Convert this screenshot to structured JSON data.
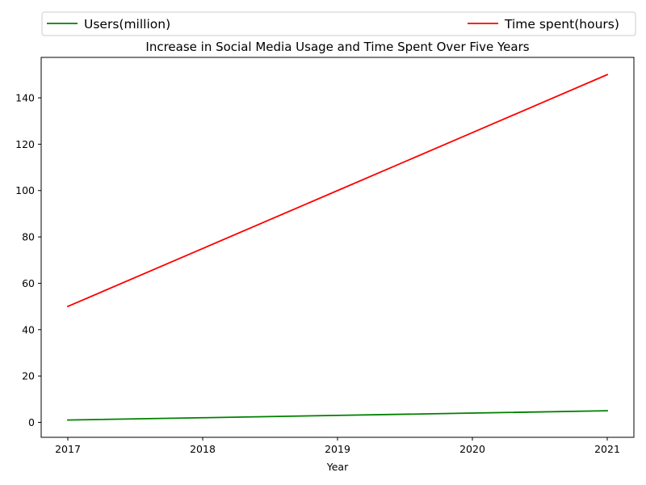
{
  "chart_data": {
    "type": "line",
    "title": "Increase in Social Media Usage and Time Spent Over Five Years",
    "xlabel": "Year",
    "ylabel": "",
    "x": [
      "2017",
      "2018",
      "2019",
      "2020",
      "2021"
    ],
    "series": [
      {
        "name": "Users(million)",
        "values": [
          1,
          2,
          3,
          4,
          5
        ],
        "color": "#008000"
      },
      {
        "name": "Time spent(hours)",
        "values": [
          50,
          75,
          100,
          125,
          150
        ],
        "color": "#ff0000"
      }
    ],
    "yticks": [
      0,
      20,
      40,
      60,
      80,
      100,
      120,
      140
    ],
    "ylim": [
      -6.45,
      157.45
    ],
    "grid": false,
    "legend_placement": "top, above plot"
  }
}
